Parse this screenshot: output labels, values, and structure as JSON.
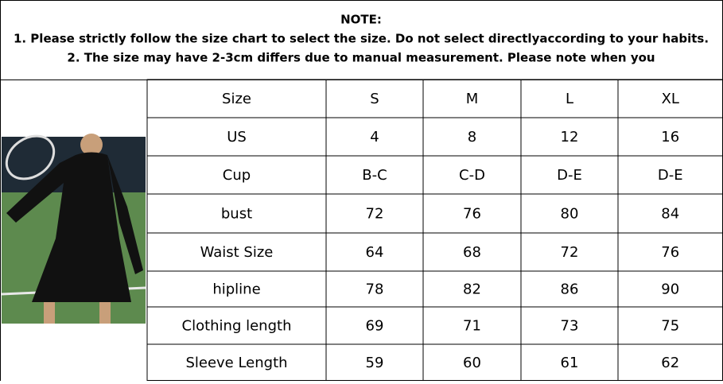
{
  "note": {
    "title": "NOTE:",
    "lines": [
      "1. Please strictly follow the size chart to select the size. Do not select directlyaccording to your habits.",
      "2. The size may have 2-3cm differs due to manual measurement. Please note when you"
    ]
  },
  "table": {
    "rows": [
      [
        "Size",
        "S",
        "M",
        "L",
        "XL"
      ],
      [
        "US",
        "4",
        "8",
        "12",
        "16"
      ],
      [
        "Cup",
        "B-C",
        "C-D",
        "D-E",
        "D-E"
      ],
      [
        "bust",
        "72",
        "76",
        "80",
        "84"
      ],
      [
        "Waist Size",
        "64",
        "68",
        "72",
        "76"
      ],
      [
        "hipline",
        "78",
        "82",
        "86",
        "90"
      ],
      [
        "Clothing length",
        "69",
        "71",
        "73",
        "75"
      ],
      [
        "Sleeve Length",
        "59",
        "60",
        "61",
        "62"
      ]
    ]
  }
}
